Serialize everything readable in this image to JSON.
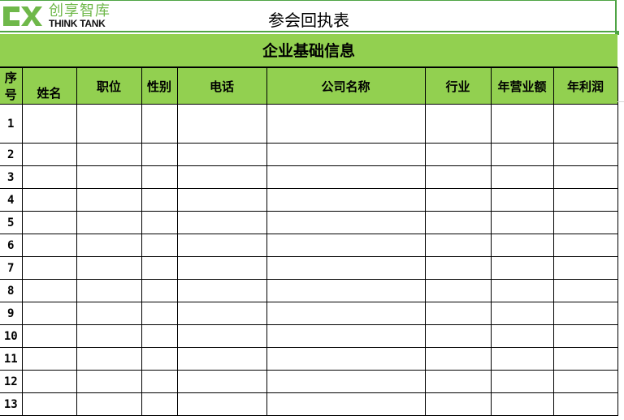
{
  "logo": {
    "cn": "创享智库",
    "en": "THINK TANK",
    "color": "#6fb84a"
  },
  "title": "参会回执表",
  "section_title": "企业基础信息",
  "accent_color": "#92d050",
  "columns": [
    "序号",
    "姓名",
    "职位",
    "性别",
    "电话",
    "公司名称",
    "行业",
    "年营业额",
    "年利润"
  ],
  "rows": [
    "1",
    "2",
    "3",
    "4",
    "5",
    "6",
    "7",
    "8",
    "9",
    "10",
    "11",
    "12",
    "13"
  ]
}
